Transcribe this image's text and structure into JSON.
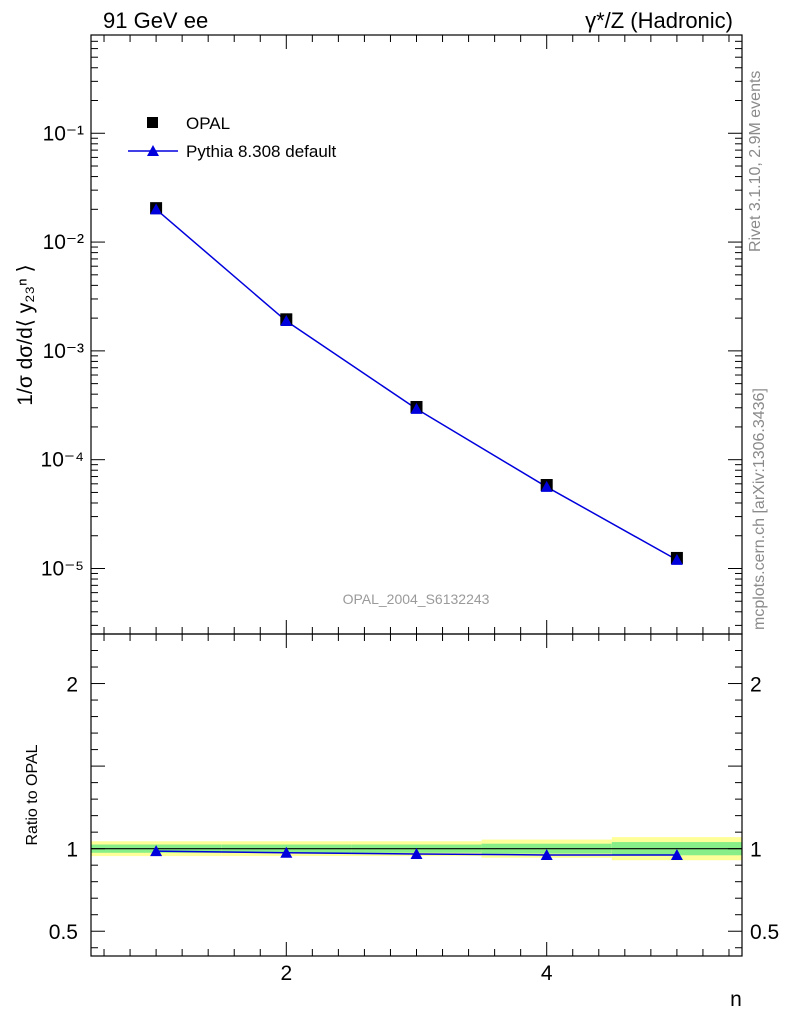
{
  "header": {
    "left": "91 GeV ee",
    "right_base": "γ*/Z (Hadronic)"
  },
  "side_text": {
    "rivet": "Rivet 3.1.10,  2.9M events",
    "source": "mcplots.cern.ch [arXiv:1306.3436]"
  },
  "watermark": "OPAL_2004_S6132243",
  "legend": {
    "data_label": "OPAL",
    "mc_label": "Pythia 8.308 default"
  },
  "colors": {
    "data": "#000000",
    "mc": "#0000dd",
    "band_inner": "#88ee88",
    "band_outer": "#ffff99"
  },
  "chart_data": [
    {
      "type": "scatter",
      "panel": "main",
      "ylabel": "1/σ dσ/d⟨ y₂₃ⁿ ⟩",
      "yscale": "log",
      "xlim": [
        0.5,
        5.5
      ],
      "ylim": [
        2.5e-06,
        0.8
      ],
      "yticks": [
        "10⁻⁵",
        "10⁻⁴",
        "10⁻³",
        "10⁻²",
        "10⁻¹"
      ],
      "legend_position": "top-left",
      "grid": false,
      "x": [
        1,
        2,
        3,
        4,
        5
      ],
      "series": [
        {
          "name": "OPAL",
          "marker": "square",
          "values": [
            0.0205,
            0.00195,
            0.000305,
            5.85e-05,
            1.25e-05
          ]
        },
        {
          "name": "Pythia 8.308 default",
          "marker": "triangle",
          "line": true,
          "values": [
            0.02,
            0.00188,
            0.000293,
            5.62e-05,
            1.2e-05
          ]
        }
      ]
    },
    {
      "type": "line",
      "panel": "ratio",
      "ylabel": "Ratio to OPAL",
      "xlabel": "n",
      "xlim": [
        0.5,
        5.5
      ],
      "ylim": [
        0.35,
        2.3
      ],
      "xticks": [
        "2",
        "4"
      ],
      "yticks": [
        "0.5",
        "1",
        "2"
      ],
      "x": [
        1,
        2,
        3,
        4,
        5
      ],
      "series": [
        {
          "name": "Pythia 8.308 default",
          "values": [
            0.985,
            0.975,
            0.968,
            0.962,
            0.962
          ]
        }
      ],
      "bands": [
        {
          "x_range": [
            0.5,
            1.5
          ],
          "inner": [
            0.975,
            1.025
          ],
          "outer": [
            0.955,
            1.045
          ]
        },
        {
          "x_range": [
            1.5,
            2.5
          ],
          "inner": [
            0.975,
            1.025
          ],
          "outer": [
            0.955,
            1.045
          ]
        },
        {
          "x_range": [
            2.5,
            3.5
          ],
          "inner": [
            0.975,
            1.025
          ],
          "outer": [
            0.955,
            1.045
          ]
        },
        {
          "x_range": [
            3.5,
            4.5
          ],
          "inner": [
            0.97,
            1.03
          ],
          "outer": [
            0.945,
            1.055
          ]
        },
        {
          "x_range": [
            4.5,
            5.5
          ],
          "inner": [
            0.96,
            1.04
          ],
          "outer": [
            0.93,
            1.07
          ]
        }
      ]
    }
  ]
}
